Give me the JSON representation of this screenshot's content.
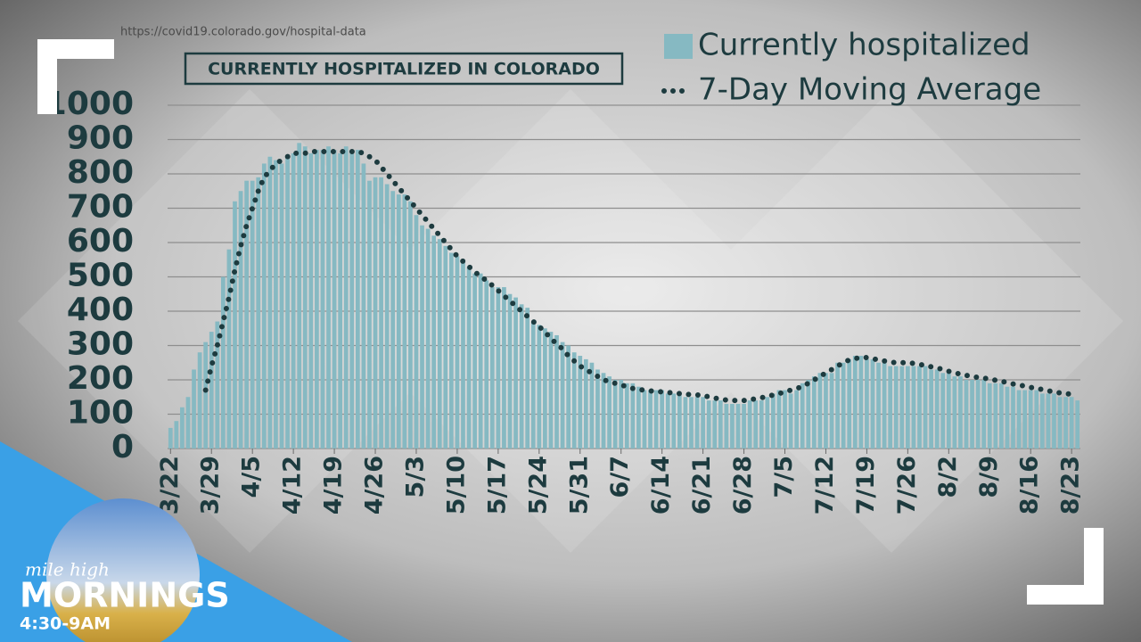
{
  "chart_data": {
    "type": "bar",
    "title": "CURRENTLY HOSPITALIZED IN COLORADO",
    "source": "https://covid19.colorado.gov/hospital-data",
    "categories": [
      "3/22",
      null,
      null,
      null,
      null,
      null,
      null,
      "3/29",
      null,
      null,
      null,
      null,
      null,
      null,
      "4/5",
      null,
      null,
      null,
      null,
      null,
      null,
      "4/12",
      null,
      null,
      null,
      null,
      null,
      null,
      "4/19",
      null,
      null,
      null,
      null,
      null,
      null,
      "4/26",
      null,
      null,
      null,
      null,
      null,
      null,
      "5/3",
      null,
      null,
      null,
      null,
      null,
      null,
      "5/10",
      null,
      null,
      null,
      null,
      null,
      null,
      "5/17",
      null,
      null,
      null,
      null,
      null,
      null,
      "5/24",
      null,
      null,
      null,
      null,
      null,
      null,
      "5/31",
      null,
      null,
      null,
      null,
      null,
      null,
      "6/7",
      null,
      null,
      null,
      null,
      null,
      null,
      "6/14",
      null,
      null,
      null,
      null,
      null,
      null,
      "6/21",
      null,
      null,
      null,
      null,
      null,
      null,
      "6/28",
      null,
      null,
      null,
      null,
      null,
      null,
      "7/5",
      null,
      null,
      null,
      null,
      null,
      null,
      "7/12",
      null,
      null,
      null,
      null,
      null,
      null,
      "7/19",
      null,
      null,
      null,
      null,
      null,
      null,
      "7/26",
      null,
      null,
      null,
      null,
      null,
      null,
      "8/2",
      null,
      null,
      null,
      null,
      null,
      null,
      "8/9",
      null,
      null,
      null,
      null,
      null,
      null,
      "8/16",
      null,
      null,
      null,
      null,
      null,
      null,
      "8/23",
      null
    ],
    "series": [
      {
        "name": "Currently hospitalized",
        "type": "bar",
        "color": "#86b9c2",
        "values": [
          60,
          80,
          120,
          150,
          230,
          280,
          310,
          340,
          370,
          500,
          580,
          720,
          750,
          780,
          780,
          790,
          830,
          850,
          840,
          830,
          850,
          860,
          890,
          880,
          860,
          870,
          870,
          880,
          870,
          860,
          880,
          870,
          870,
          830,
          780,
          790,
          790,
          770,
          750,
          740,
          740,
          720,
          680,
          650,
          640,
          620,
          610,
          590,
          570,
          560,
          550,
          530,
          510,
          510,
          490,
          470,
          470,
          470,
          450,
          440,
          420,
          410,
          370,
          360,
          350,
          340,
          330,
          310,
          300,
          280,
          270,
          260,
          250,
          230,
          220,
          210,
          200,
          200,
          190,
          190,
          180,
          170,
          170,
          170,
          170,
          160,
          160,
          160,
          150,
          150,
          150,
          150,
          140,
          140,
          140,
          130,
          130,
          130,
          130,
          140,
          140,
          140,
          150,
          160,
          170,
          170,
          160,
          170,
          190,
          200,
          210,
          220,
          220,
          220,
          250,
          250,
          260,
          270,
          270,
          260,
          260,
          250,
          250,
          240,
          240,
          240,
          240,
          240,
          240,
          240,
          230,
          230,
          220,
          220,
          210,
          210,
          200,
          200,
          200,
          200,
          190,
          190,
          190,
          180,
          180,
          170,
          170,
          170,
          170,
          160,
          160,
          160,
          150,
          150,
          150,
          140
        ]
      },
      {
        "name": "7-Day Moving Average",
        "type": "line",
        "color": "#1d3b3f",
        "values": [
          null,
          null,
          null,
          null,
          null,
          null,
          170,
          240,
          300,
          370,
          440,
          520,
          590,
          650,
          700,
          750,
          790,
          810,
          830,
          840,
          850,
          860,
          860,
          860,
          865,
          865,
          865,
          865,
          865,
          865,
          865,
          865,
          865,
          860,
          850,
          840,
          820,
          800,
          780,
          760,
          740,
          720,
          700,
          680,
          660,
          640,
          620,
          600,
          580,
          560,
          545,
          530,
          515,
          500,
          490,
          475,
          460,
          445,
          430,
          415,
          400,
          385,
          370,
          355,
          340,
          320,
          305,
          290,
          270,
          255,
          240,
          230,
          220,
          210,
          200,
          195,
          190,
          185,
          180,
          175,
          172,
          170,
          168,
          166,
          165,
          163,
          162,
          160,
          158,
          157,
          156,
          155,
          150,
          147,
          144,
          141,
          140,
          140,
          140,
          142,
          145,
          148,
          152,
          156,
          160,
          165,
          170,
          175,
          180,
          190,
          200,
          210,
          220,
          230,
          240,
          250,
          258,
          262,
          265,
          265,
          262,
          258,
          255,
          252,
          250,
          250,
          250,
          248,
          245,
          242,
          238,
          235,
          230,
          225,
          220,
          217,
          213,
          210,
          207,
          205,
          202,
          199,
          196,
          192,
          188,
          185,
          182,
          178,
          175,
          172,
          168,
          165,
          162,
          160,
          158,
          155
        ]
      }
    ],
    "ylim": [
      0,
      1000
    ],
    "yticks": [
      0,
      100,
      200,
      300,
      400,
      500,
      600,
      700,
      800,
      900,
      1000
    ],
    "grid": true,
    "legend": "top-right"
  },
  "overlay": {
    "show_line1": "mile high",
    "show_line2": "MORNINGS",
    "time": "4:30-9AM"
  }
}
